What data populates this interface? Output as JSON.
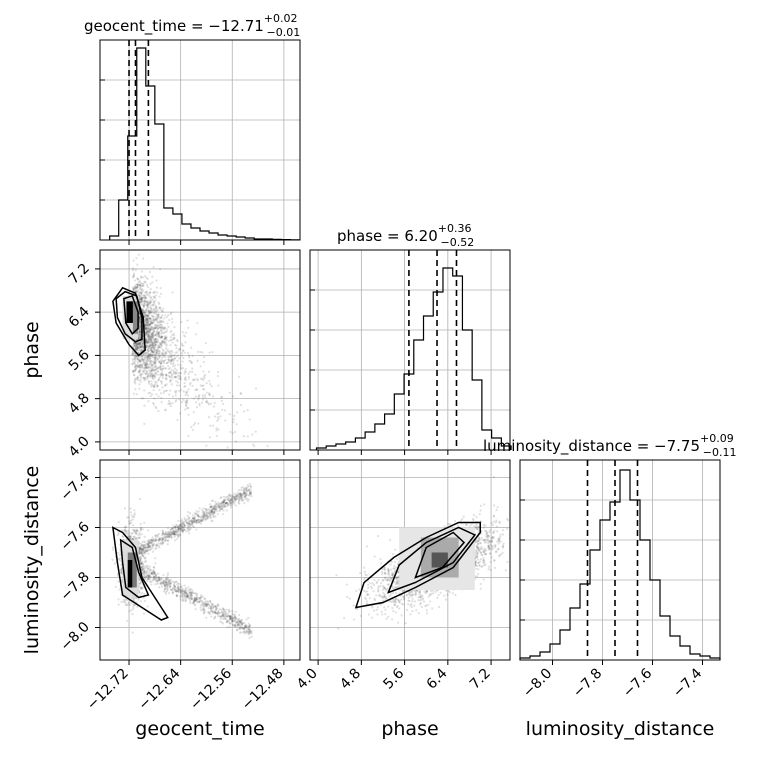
{
  "chart_data": {
    "type": "corner",
    "parameters": [
      "geocent_time",
      "phase",
      "luminosity_distance"
    ],
    "titles": [
      {
        "text": "geocent_time = −12.71",
        "sup": "+0.02",
        "sub": "−0.01"
      },
      {
        "text": "phase = 6.20",
        "sup": "+0.36",
        "sub": "−0.52"
      },
      {
        "text": "luminosity_distance = −7.75",
        "sup": "+0.09",
        "sub": "−0.11"
      }
    ],
    "ranges": [
      [
        -12.765,
        -12.455
      ],
      [
        3.85,
        7.55
      ],
      [
        -8.13,
        -7.33
      ]
    ],
    "ticks": [
      {
        "values": [
          -12.72,
          -12.64,
          -12.56,
          -12.48
        ],
        "labels": [
          "−12.72",
          "−12.64",
          "−12.56",
          "−12.48"
        ]
      },
      {
        "values": [
          4.0,
          4.8,
          5.6,
          6.4,
          7.2
        ],
        "labels": [
          "4.0",
          "4.8",
          "5.6",
          "6.4",
          "7.2"
        ]
      },
      {
        "values": [
          -8.0,
          -7.8,
          -7.6,
          -7.4
        ],
        "labels": [
          "−8.0",
          "−7.8",
          "−7.6",
          "−7.4"
        ]
      }
    ],
    "quantiles": [
      [
        -12.72,
        -12.71,
        -12.69
      ],
      [
        5.68,
        6.2,
        6.56
      ],
      [
        -7.86,
        -7.75,
        -7.66
      ]
    ],
    "histograms": [
      {
        "bins": [
          -12.75,
          -12.736,
          -12.722,
          -12.708,
          -12.694,
          -12.68,
          -12.666,
          -12.652,
          -12.638,
          -12.624,
          -12.61,
          -12.596,
          -12.582,
          -12.568,
          -12.554,
          -12.54,
          -12.526,
          -12.512,
          -12.498,
          -12.484,
          -12.47,
          -12.456
        ],
        "counts": [
          0.02,
          0.2,
          0.52,
          0.96,
          0.77,
          0.58,
          0.16,
          0.13,
          0.08,
          0.06,
          0.045,
          0.035,
          0.025,
          0.02,
          0.015,
          0.01,
          0.005,
          0.005,
          0.003,
          0.002,
          0.001
        ]
      },
      {
        "bins": [
          3.97,
          4.15,
          4.33,
          4.51,
          4.69,
          4.87,
          5.05,
          5.23,
          5.41,
          5.59,
          5.77,
          5.95,
          6.13,
          6.31,
          6.49,
          6.67,
          6.85,
          7.03,
          7.21,
          7.39,
          7.57
        ],
        "counts": [
          0.01,
          0.02,
          0.03,
          0.04,
          0.06,
          0.09,
          0.13,
          0.18,
          0.28,
          0.38,
          0.55,
          0.67,
          0.79,
          0.91,
          0.87,
          0.6,
          0.35,
          0.1,
          0.06,
          0.02
        ]
      },
      {
        "bins": [
          -8.13,
          -8.09,
          -8.05,
          -8.01,
          -7.97,
          -7.93,
          -7.89,
          -7.85,
          -7.81,
          -7.77,
          -7.73,
          -7.69,
          -7.65,
          -7.61,
          -7.57,
          -7.53,
          -7.49,
          -7.45,
          -7.41,
          -7.37,
          -7.33
        ],
        "counts": [
          0.01,
          0.02,
          0.04,
          0.08,
          0.15,
          0.26,
          0.38,
          0.55,
          0.7,
          0.79,
          0.95,
          0.8,
          0.6,
          0.4,
          0.22,
          0.12,
          0.07,
          0.03,
          0.02,
          0.01
        ]
      }
    ],
    "hist_ylim": [
      0,
      1.0
    ],
    "grid": true
  }
}
